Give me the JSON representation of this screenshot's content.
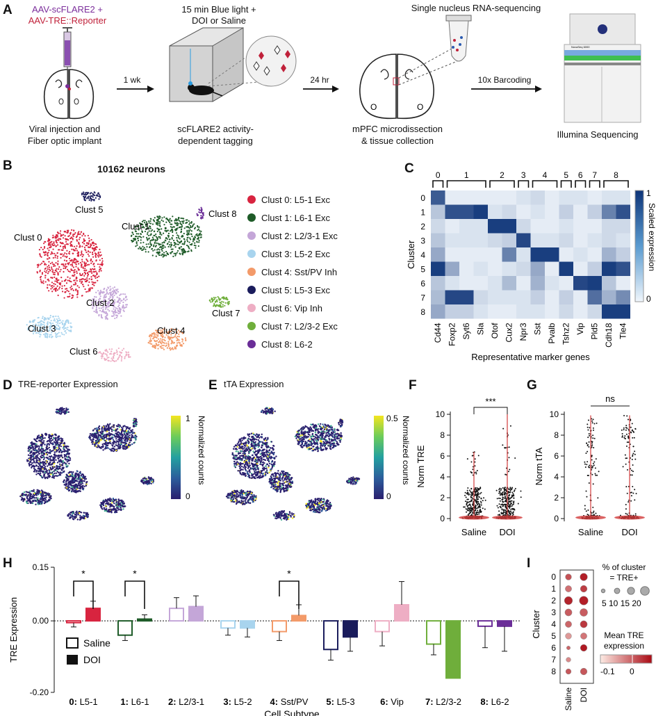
{
  "panel_labels": [
    "A",
    "B",
    "C",
    "D",
    "E",
    "F",
    "G",
    "H",
    "I"
  ],
  "panelA": {
    "step1_top_line1": "AAV-scFLARE2 +",
    "step1_top_line2": "AAV-TRE::Reporter",
    "step1_bottom_line1": "Viral injection and",
    "step1_bottom_line2": "Fiber optic implant",
    "arrow1": "1 wk",
    "step2_top_line1": "15 min Blue light +",
    "step2_top_line2": "DOI or Saline",
    "step2_bottom_line1": "scFLARE2 activity-",
    "step2_bottom_line2": "dependent tagging",
    "arrow2": "24 hr",
    "step3_top": "Single nucleus RNA-sequencing",
    "step3_bottom_line1": "mPFC microdissection",
    "step3_bottom_line2": "& tissue collection",
    "arrow3": "10x Barcoding",
    "sequencer_label": "NovaSeq 6000",
    "step4_bottom": "Illumina Sequencing",
    "colors": {
      "step1_line1": "#7b2d9b",
      "step1_line2": "#c0213a"
    }
  },
  "panelB": {
    "title": "10162 neurons",
    "clusters": [
      {
        "map_label": "Clust 0",
        "legend": "Clust 0: L5-1 Exc",
        "color": "#d8243f"
      },
      {
        "map_label": "Clust 1",
        "legend": "Clust 1: L6-1 Exc",
        "color": "#1e5b28"
      },
      {
        "map_label": "Clust 2",
        "legend": "Clust 2: L2/3-1 Exc",
        "color": "#c4a6d8"
      },
      {
        "map_label": "Clust 3",
        "legend": "Clust 3: L5-2 Exc",
        "color": "#a8d4ee"
      },
      {
        "map_label": "Clust 4",
        "legend": "Clust 4: Sst/PV Inh",
        "color": "#f39a69"
      },
      {
        "map_label": "Clust 5",
        "legend": "Clust 5: L5-3 Exc",
        "color": "#1a1c5c"
      },
      {
        "map_label": "Clust 6",
        "legend": "Clust 6: Vip Inh",
        "color": "#eeaec4"
      },
      {
        "map_label": "Clust 7",
        "legend": "Clust 7: L2/3-2 Exc",
        "color": "#6fae3b"
      },
      {
        "map_label": "Clust 8",
        "legend": "Clust 8: L6-2",
        "color": "#6a2d97"
      }
    ]
  },
  "panelD": {
    "title": "TRE-reporter Expression",
    "cbar_label": "Normalized counts",
    "cbar_max": "1",
    "cbar_min": "0"
  },
  "panelE": {
    "title": "tTA Expression",
    "cbar_label": "Normalized counts",
    "cbar_max": "0.5",
    "cbar_min": "0"
  },
  "chart_data": [
    {
      "id": "C",
      "type": "heatmap",
      "xlabel": "Representative marker genes",
      "ylabel": "Cluster",
      "colorbar_label": "Scaled expression",
      "colorbar_ticks": [
        "1",
        "0"
      ],
      "group_labels": [
        "0",
        "1",
        "2",
        "3",
        "4",
        "5",
        "6",
        "7",
        "8"
      ],
      "genes": [
        "Cd44",
        "Foxp2",
        "Syt6",
        "Sla",
        "Otof",
        "Cux2",
        "Npr3",
        "Sst",
        "Pvalb",
        "Tshz2",
        "Vip",
        "Pld5",
        "Cdh18",
        "Tle4"
      ],
      "rows": [
        "0",
        "1",
        "2",
        "3",
        "4",
        "5",
        "6",
        "7",
        "8"
      ],
      "values": [
        [
          0.8,
          0.05,
          0.05,
          0.05,
          0.05,
          0.05,
          0.1,
          0.15,
          0.05,
          0.1,
          0.1,
          0.05,
          0.1,
          0.1
        ],
        [
          0.25,
          0.85,
          0.85,
          0.95,
          0.1,
          0.15,
          0.05,
          0.1,
          0.05,
          0.2,
          0.05,
          0.2,
          0.6,
          0.85
        ],
        [
          0.15,
          0.05,
          0.1,
          0.1,
          0.95,
          0.95,
          0.15,
          0.05,
          0.05,
          0.1,
          0.05,
          0.05,
          0.15,
          0.15
        ],
        [
          0.25,
          0.1,
          0.1,
          0.1,
          0.15,
          0.2,
          0.9,
          0.1,
          0.1,
          0.15,
          0.05,
          0.1,
          0.15,
          0.1
        ],
        [
          0.4,
          0.05,
          0.05,
          0.05,
          0.05,
          0.6,
          0.1,
          0.95,
          0.95,
          0.05,
          0.1,
          0.05,
          0.35,
          0.2
        ],
        [
          0.95,
          0.4,
          0.05,
          0.1,
          0.05,
          0.1,
          0.15,
          0.4,
          0.05,
          0.95,
          0.05,
          0.2,
          0.95,
          0.85
        ],
        [
          0.25,
          0.1,
          0.05,
          0.05,
          0.1,
          0.3,
          0.05,
          0.35,
          0.1,
          0.05,
          0.9,
          0.95,
          0.25,
          0.05
        ],
        [
          0.3,
          0.9,
          0.9,
          0.15,
          0.1,
          0.1,
          0.1,
          0.2,
          0.05,
          0.2,
          0.05,
          0.7,
          0.35,
          0.55
        ],
        [
          0.4,
          0.2,
          0.2,
          0.1,
          0.05,
          0.05,
          0.1,
          0.1,
          0.05,
          0.15,
          0.05,
          0.15,
          0.95,
          0.95
        ]
      ]
    },
    {
      "id": "F",
      "type": "scatter",
      "ylabel": "Norm TRE",
      "categories": [
        "Saline",
        "DOI"
      ],
      "yticks": [
        "0",
        "2",
        "4",
        "6",
        "8",
        "10"
      ],
      "ylim": [
        0,
        10
      ],
      "max": [
        6.4,
        10.0
      ],
      "significance": "***"
    },
    {
      "id": "G",
      "type": "scatter",
      "ylabel": "Norm tTA",
      "categories": [
        "Saline",
        "DOI"
      ],
      "yticks": [
        "0",
        "2",
        "4",
        "6",
        "8",
        "10"
      ],
      "ylim": [
        0,
        10
      ],
      "max": [
        9.9,
        9.9
      ],
      "significance": "ns"
    },
    {
      "id": "H",
      "type": "bar",
      "ylabel": "TRE Expression",
      "xlabel": "Cell Subtype",
      "yticks": [
        "0.15",
        "0.00",
        "-0.20"
      ],
      "ylim": [
        -0.2,
        0.15
      ],
      "categories": [
        {
          "num": "0:",
          "name": " L5-1"
        },
        {
          "num": "1:",
          "name": " L6-1"
        },
        {
          "num": "2:",
          "name": " L2/3-1"
        },
        {
          "num": "3:",
          "name": " L5-2"
        },
        {
          "num": "4:",
          "name": " Sst/PV"
        },
        {
          "num": "5:",
          "name": " L5-3"
        },
        {
          "num": "6:",
          "name": " Vip"
        },
        {
          "num": "7:",
          "name": " L2/3-2"
        },
        {
          "num": "8:",
          "name": " L6-2"
        }
      ],
      "series": [
        {
          "name": "Saline",
          "values": [
            -0.005,
            -0.04,
            0.035,
            -0.02,
            -0.03,
            -0.08,
            -0.03,
            -0.065,
            -0.015
          ],
          "err": [
            0.012,
            0.015,
            0.03,
            0.02,
            0.025,
            0.03,
            0.04,
            0.03,
            0.06
          ]
        },
        {
          "name": "DOI",
          "values": [
            0.035,
            0.005,
            0.04,
            -0.02,
            0.015,
            -0.045,
            0.045,
            -0.16,
            -0.015
          ],
          "err": [
            0.02,
            0.012,
            0.03,
            0.025,
            0.03,
            0.04,
            0.065,
            0.0,
            0.07
          ]
        }
      ],
      "significance": [
        {
          "between": [
            0,
            0
          ],
          "label": "*"
        },
        {
          "between": [
            1,
            1
          ],
          "label": "*"
        },
        {
          "between": [
            4,
            4
          ],
          "label": "*"
        }
      ],
      "legend": [
        "Saline",
        "DOI"
      ]
    },
    {
      "id": "I",
      "type": "scatter",
      "ylabel": "Cluster",
      "columns": [
        "Saline",
        "DOI"
      ],
      "rows": [
        "0",
        "1",
        "2",
        "3",
        "4",
        "5",
        "6",
        "7",
        "8"
      ],
      "size_legend_title_line1": "% of cluster",
      "size_legend_title_line2": "= TRE+",
      "size_legend_values": [
        "5",
        "10",
        "15",
        "20"
      ],
      "color_legend_title_line1": "Mean TRE",
      "color_legend_title_line2": "expression",
      "color_legend_ticks": [
        "-0.1",
        "0"
      ],
      "pct": [
        [
          12,
          16
        ],
        [
          13,
          14
        ],
        [
          18,
          20
        ],
        [
          15,
          17
        ],
        [
          13,
          15
        ],
        [
          12,
          13
        ],
        [
          5,
          14
        ],
        [
          8,
          0
        ],
        [
          10,
          14
        ]
      ],
      "mean": [
        [
          -0.01,
          0.04
        ],
        [
          -0.04,
          0.01
        ],
        [
          0.035,
          0.04
        ],
        [
          -0.02,
          -0.02
        ],
        [
          -0.03,
          0.015
        ],
        [
          -0.08,
          -0.045
        ],
        [
          -0.03,
          0.045
        ],
        [
          -0.065,
          -0.16
        ],
        [
          -0.015,
          -0.015
        ]
      ]
    }
  ]
}
